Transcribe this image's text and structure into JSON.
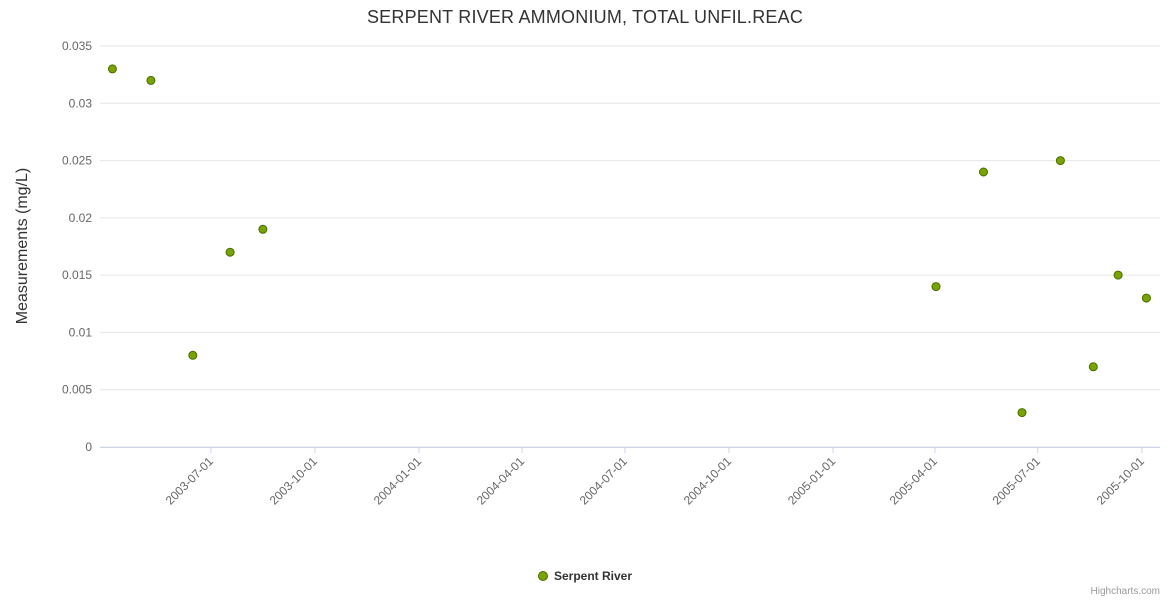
{
  "title": "SERPENT RIVER AMMONIUM, TOTAL UNFIL.REAC",
  "credits": "Highcharts.com",
  "colors": {
    "point_fill": "#77a402",
    "point_stroke": "#4b6b00",
    "grid": "#e6e6e6",
    "axis_line": "#ccd6eb",
    "tick": "#ccd6eb",
    "axis_label": "#666666",
    "title_color": "#333333"
  },
  "chart_data": {
    "type": "scatter",
    "title": "SERPENT RIVER AMMONIUM, TOTAL UNFIL.REAC",
    "xlabel": "",
    "ylabel": "Measurements (mg/L)",
    "ylim": [
      0,
      0.035
    ],
    "x_range": [
      "2003-03-25",
      "2005-10-17"
    ],
    "grid": "horizontal-only",
    "legend_position": "bottom-center",
    "y_ticks": [
      {
        "value": 0,
        "label": "0"
      },
      {
        "value": 0.005,
        "label": "0.005"
      },
      {
        "value": 0.01,
        "label": "0.01"
      },
      {
        "value": 0.015,
        "label": "0.015"
      },
      {
        "value": 0.02,
        "label": "0.02"
      },
      {
        "value": 0.025,
        "label": "0.025"
      },
      {
        "value": 0.03,
        "label": "0.03"
      },
      {
        "value": 0.035,
        "label": "0.035"
      }
    ],
    "x_ticks": [
      "2003-07-01",
      "2003-10-01",
      "2004-01-01",
      "2004-04-01",
      "2004-07-01",
      "2004-10-01",
      "2005-01-01",
      "2005-04-01",
      "2005-07-01",
      "2005-10-01"
    ],
    "series": [
      {
        "name": "Serpent River",
        "points": [
          {
            "date": "2003-04-05",
            "value": 0.033
          },
          {
            "date": "2003-05-09",
            "value": 0.032
          },
          {
            "date": "2003-06-15",
            "value": 0.008
          },
          {
            "date": "2003-07-18",
            "value": 0.017
          },
          {
            "date": "2003-08-16",
            "value": 0.019
          },
          {
            "date": "2005-04-02",
            "value": 0.014
          },
          {
            "date": "2005-05-14",
            "value": 0.024
          },
          {
            "date": "2005-06-17",
            "value": 0.003
          },
          {
            "date": "2005-07-21",
            "value": 0.025
          },
          {
            "date": "2005-08-19",
            "value": 0.007
          },
          {
            "date": "2005-09-10",
            "value": 0.015
          },
          {
            "date": "2005-10-05",
            "value": 0.013
          }
        ]
      }
    ]
  }
}
